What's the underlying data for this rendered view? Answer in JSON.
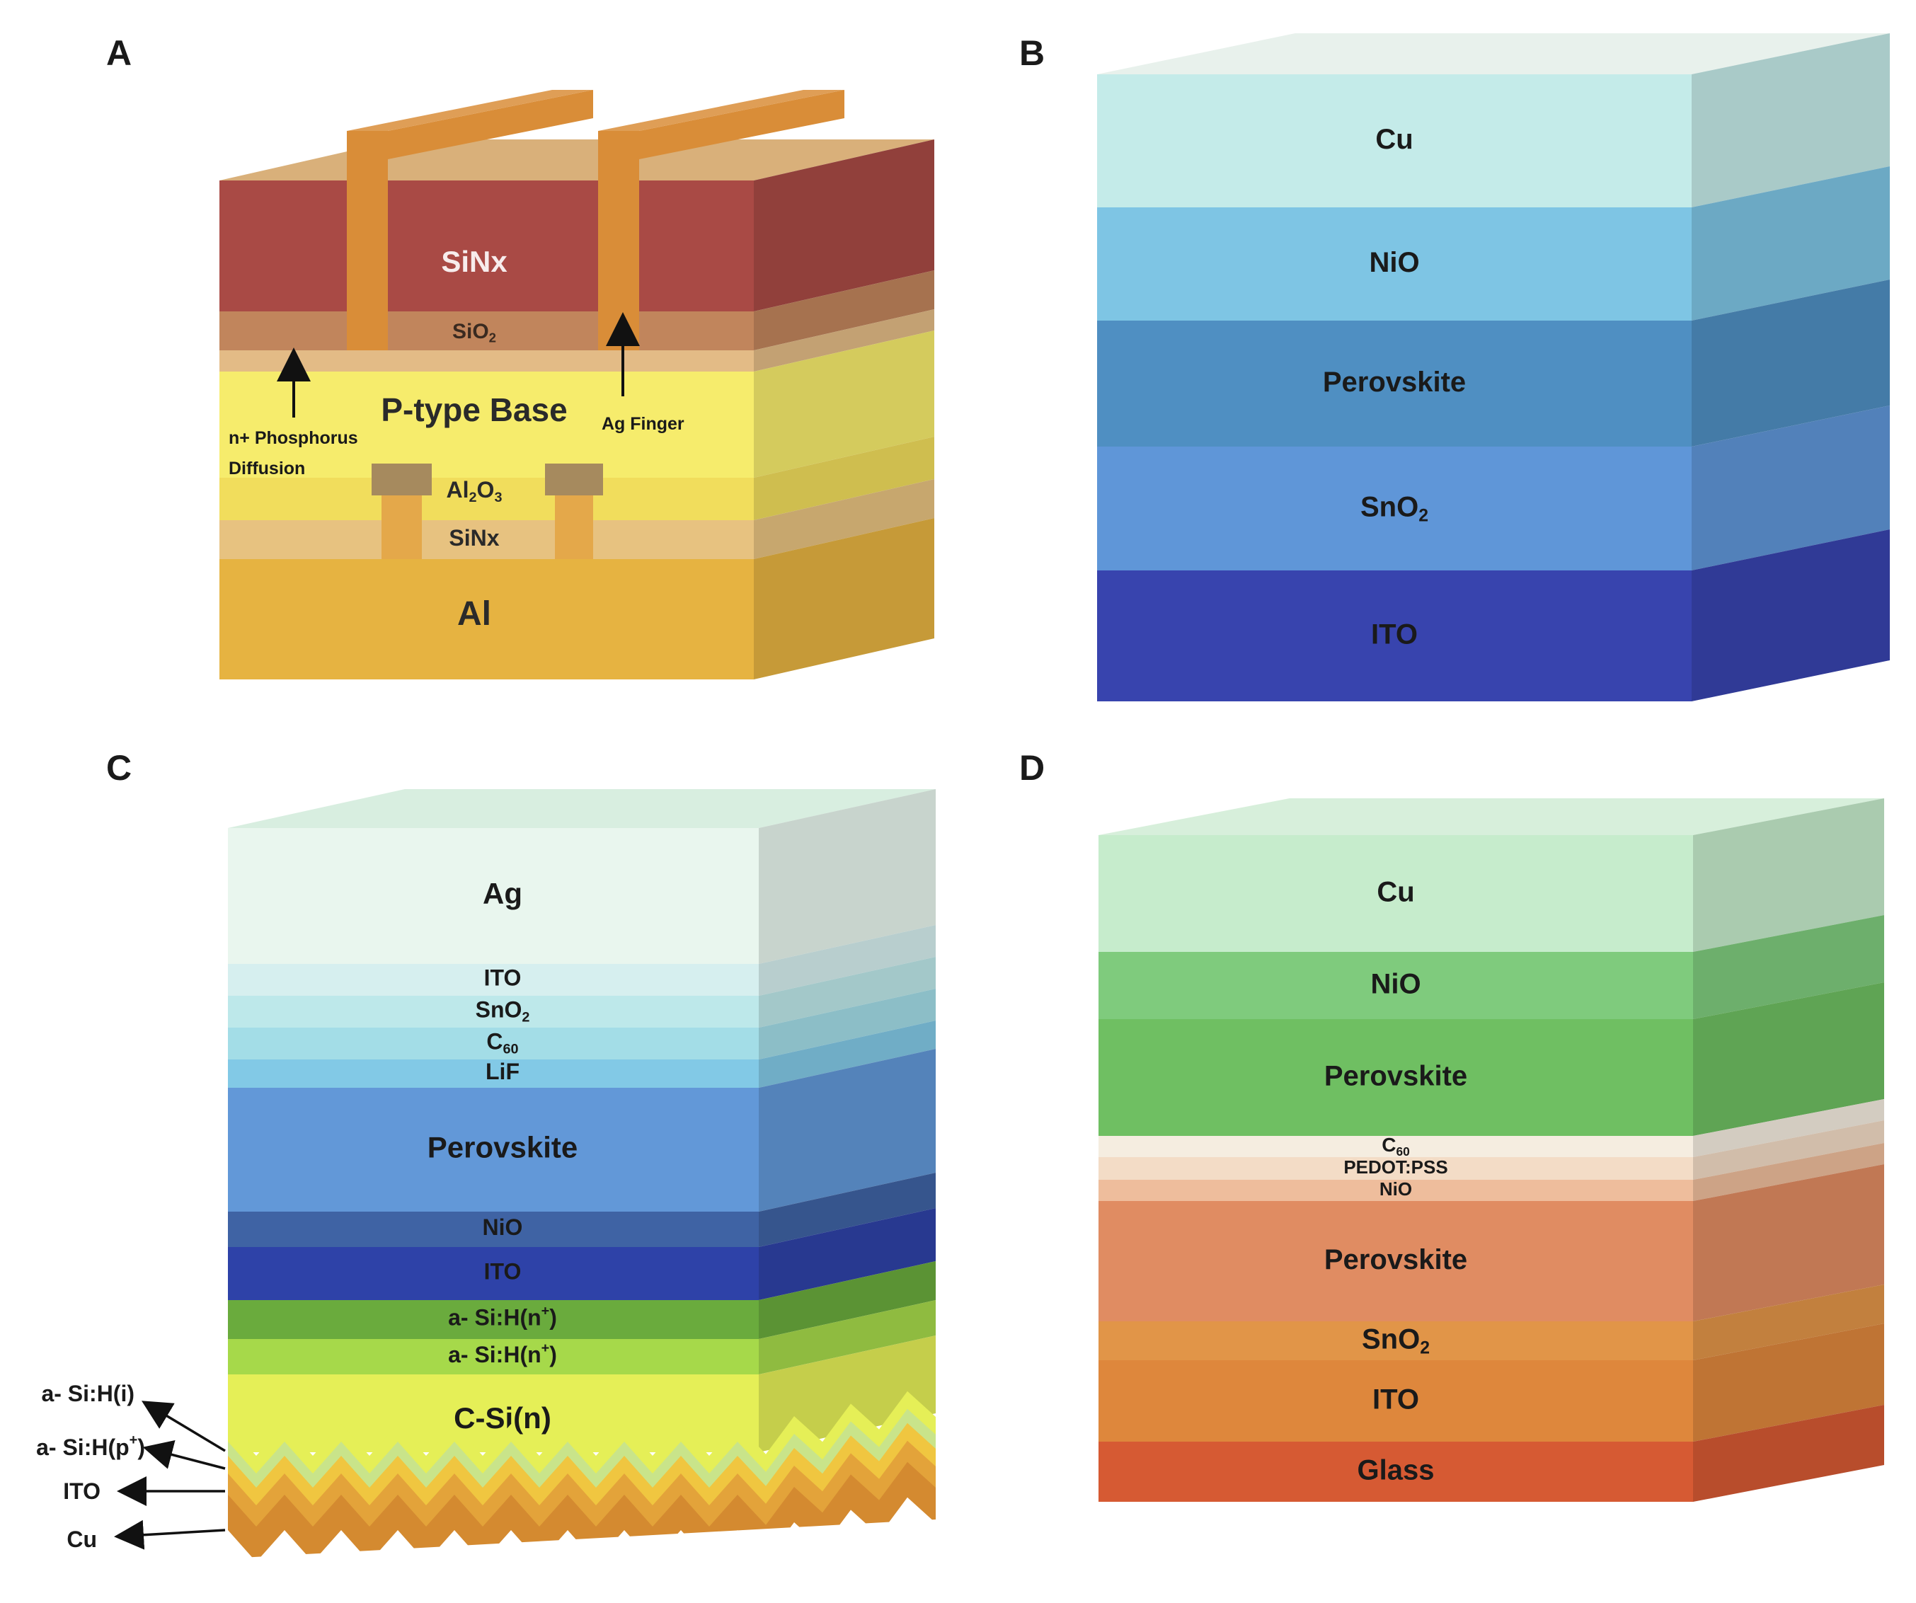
{
  "panels": {
    "a": {
      "letter": "A",
      "layers": [
        {
          "name": "SiNx",
          "color": "#a94a45"
        },
        {
          "name": "SiO",
          "sub": "2",
          "color": "#c1855c"
        },
        {
          "name": "",
          "color": "#e3bb86"
        },
        {
          "name": "P-type Base",
          "color": "#f6ec6c"
        },
        {
          "name": "Al",
          "sub_mid": "2",
          "tail": "O",
          "sub": "3",
          "color": "#f1dd5c"
        },
        {
          "name": "SiNx",
          "color": "#e7c280"
        },
        {
          "name": "Al",
          "color": "#e6b341"
        }
      ],
      "annotations": {
        "n_phos_line1": "n+ Phosphorus",
        "n_phos_line2": "Diffusion",
        "ag_finger": "Ag Finger"
      },
      "colors": {
        "finger": "#d98d38",
        "finger_side": "#b8732a",
        "contact": "#a68a5e"
      }
    },
    "b": {
      "letter": "B",
      "layers": [
        {
          "name": "Cu",
          "color": "#c4ebe9"
        },
        {
          "name": "NiO",
          "color": "#7ec5e4"
        },
        {
          "name": "Perovskite",
          "color": "#4f8fc2"
        },
        {
          "name": "SnO",
          "sub": "2",
          "color": "#5f96d8"
        },
        {
          "name": "ITO",
          "color": "#3844ae"
        }
      ]
    },
    "c": {
      "letter": "C",
      "layers": [
        {
          "name": "Ag",
          "color": "#e9f6ee"
        },
        {
          "name": "ITO",
          "color": "#d6efef"
        },
        {
          "name": "SnO",
          "sub": "2",
          "color": "#bde8ea"
        },
        {
          "name": "C",
          "sub": "60",
          "color": "#a3dde7"
        },
        {
          "name": "LiF",
          "color": "#82c9e6"
        },
        {
          "name": "Perovskite",
          "color": "#6298d8"
        },
        {
          "name": "NiO",
          "color": "#3f63a4"
        },
        {
          "name": "ITO",
          "color": "#2e42a8"
        },
        {
          "name": "a- Si:H(n",
          "sup": "+",
          "tail": ")",
          "color": "#6aab3d"
        },
        {
          "name": "a- Si:H(n",
          "sup": "+",
          "tail": ")",
          "color": "#a6d94a"
        },
        {
          "name": "C-Si(n)",
          "color": "#e5ef57"
        }
      ],
      "side_labels": [
        {
          "name": "a- Si:H(i)"
        },
        {
          "name": "a- Si:H(p",
          "sup": "+",
          "tail": ")"
        },
        {
          "name": "ITO"
        },
        {
          "name": "Cu"
        }
      ],
      "texture_colors": [
        "#e5ef57",
        "#f0c640",
        "#e3a33a",
        "#d48a30"
      ]
    },
    "d": {
      "letter": "D",
      "layers": [
        {
          "name": "Cu",
          "color": "#c6eccc"
        },
        {
          "name": "NiO",
          "color": "#7fcb7d"
        },
        {
          "name": "Perovskite",
          "color": "#6fbf62"
        },
        {
          "name": "C",
          "sub": "60",
          "color": "#f5ede0"
        },
        {
          "name": "PEDOT:PSS",
          "color": "#f3dcc6"
        },
        {
          "name": "NiO",
          "color": "#eebd9c"
        },
        {
          "name": "Perovskite",
          "color": "#e08c62"
        },
        {
          "name": "SnO",
          "sub": "2",
          "color": "#e19548"
        },
        {
          "name": "ITO",
          "color": "#de873c"
        },
        {
          "name": "Glass",
          "color": "#d65a33"
        }
      ]
    }
  }
}
